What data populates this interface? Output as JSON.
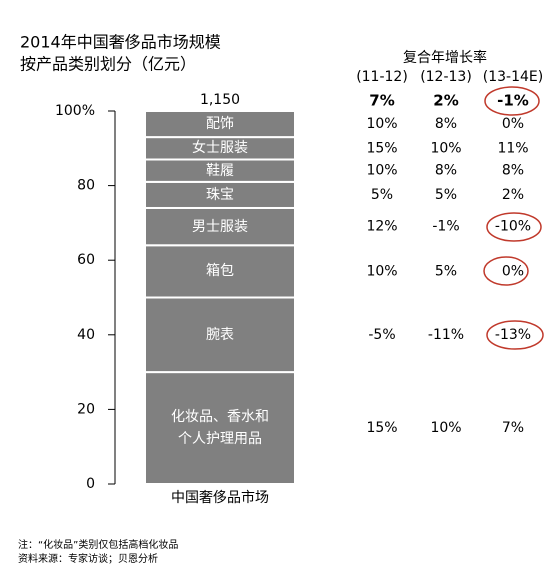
{
  "chart_data": {
    "type": "stacked_bar",
    "title": "2014年中国奢侈品市场规模",
    "subtitle": "按产品类别划分（亿元）",
    "total_label": "1,150",
    "categories": [
      "中国奢侈品市场"
    ],
    "series": [
      {
        "name": "化妆品、香水和个人护理用品",
        "color": "#808080",
        "values": [
          30
        ]
      },
      {
        "name": "腕表",
        "color": "#808080",
        "values": [
          20
        ]
      },
      {
        "name": "箱包",
        "color": "#808080",
        "values": [
          14
        ]
      },
      {
        "name": "男士服装",
        "color": "#808080",
        "values": [
          10
        ]
      },
      {
        "name": "珠宝",
        "color": "#808080",
        "values": [
          7
        ]
      },
      {
        "name": "鞋履",
        "color": "#808080",
        "values": [
          6
        ]
      },
      {
        "name": "女士服装",
        "color": "#808080",
        "values": [
          6
        ]
      },
      {
        "name": "配饰",
        "color": "#808080",
        "values": [
          7
        ]
      }
    ],
    "ylim": [
      0,
      100
    ],
    "yticks": [
      0,
      20,
      40,
      60,
      80,
      {
        "value": 100,
        "label": "100%"
      }
    ],
    "growth": {
      "header": "复合年增长率",
      "columns": [
        "(11-12)",
        "(12-13)",
        "(13-14E)"
      ],
      "total": [
        "7%",
        "2%",
        "-1%"
      ],
      "rows": [
        [
          "15%",
          "10%",
          "7%"
        ],
        [
          "-5%",
          "-11%",
          "-13%"
        ],
        [
          "10%",
          "5%",
          "0%"
        ],
        [
          "12%",
          "-1%",
          "-10%"
        ],
        [
          "5%",
          "5%",
          "2%"
        ],
        [
          "10%",
          "8%",
          "8%"
        ],
        [
          "15%",
          "10%",
          "11%"
        ],
        [
          "10%",
          "8%",
          "0%"
        ]
      ]
    },
    "notes": [
      "注：“化妆品”类别仅包括高档化妆品",
      "资料来源：专家访谈；贝恩分析"
    ]
  }
}
